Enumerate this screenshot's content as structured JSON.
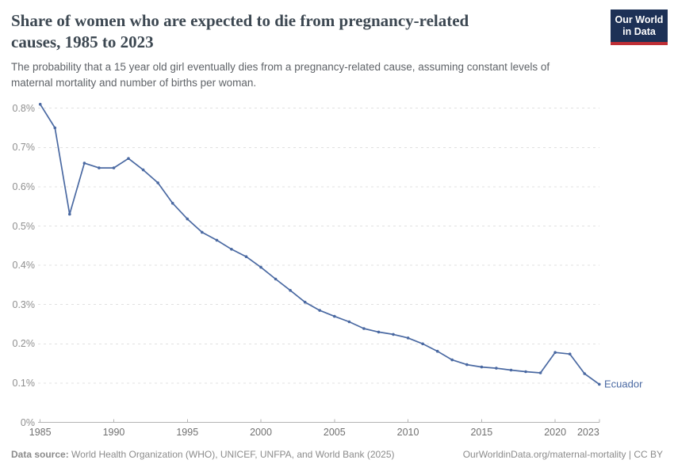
{
  "header": {
    "title_lines": [
      "Share of women who are expected to die from pregnancy-related",
      "causes, 1985 to 2023"
    ],
    "subtitle_lines": [
      "The probability that a 15 year old girl eventually dies from a pregnancy-related cause, assuming constant levels of",
      "maternal mortality and number of births per woman."
    ],
    "logo": {
      "line1": "Our World",
      "line2": "in Data"
    }
  },
  "footer": {
    "source_label": "Data source:",
    "source_text": "World Health Organization (WHO), UNICEF, UNFPA, and World Bank (2025)",
    "link_text": "OurWorldinData.org/maternal-mortality | CC BY"
  },
  "chart_data": {
    "type": "line",
    "title": "Share of women who are expected to die from pregnancy-related causes, 1985 to 2023",
    "xlabel": "",
    "ylabel": "",
    "unit": "%",
    "grid": "horizontal-dashed",
    "legend_position": "end-of-line-label",
    "ylim": [
      0,
      0.8
    ],
    "yticks": [
      {
        "value": 0.0,
        "label": "0%"
      },
      {
        "value": 0.1,
        "label": "0.1%"
      },
      {
        "value": 0.2,
        "label": "0.2%"
      },
      {
        "value": 0.3,
        "label": "0.3%"
      },
      {
        "value": 0.4,
        "label": "0.4%"
      },
      {
        "value": 0.5,
        "label": "0.5%"
      },
      {
        "value": 0.6,
        "label": "0.6%"
      },
      {
        "value": 0.7,
        "label": "0.7%"
      },
      {
        "value": 0.8,
        "label": "0.8%"
      }
    ],
    "xticks": [
      1985,
      1990,
      1995,
      2000,
      2005,
      2010,
      2015,
      2020,
      2023
    ],
    "x": [
      1985,
      1986,
      1987,
      1988,
      1989,
      1990,
      1991,
      1992,
      1993,
      1994,
      1995,
      1996,
      1997,
      1998,
      1999,
      2000,
      2001,
      2002,
      2003,
      2004,
      2005,
      2006,
      2007,
      2008,
      2009,
      2010,
      2011,
      2012,
      2013,
      2014,
      2015,
      2016,
      2017,
      2018,
      2019,
      2020,
      2021,
      2022,
      2023
    ],
    "series": [
      {
        "name": "Ecuador",
        "color": "#4a69a2",
        "values": [
          0.81,
          0.75,
          0.53,
          0.66,
          0.648,
          0.648,
          0.672,
          0.643,
          0.61,
          0.558,
          0.518,
          0.484,
          0.464,
          0.441,
          0.422,
          0.395,
          0.365,
          0.336,
          0.306,
          0.285,
          0.27,
          0.256,
          0.239,
          0.23,
          0.224,
          0.215,
          0.2,
          0.181,
          0.159,
          0.147,
          0.141,
          0.138,
          0.133,
          0.129,
          0.126,
          0.178,
          0.174,
          0.124,
          0.097
        ]
      }
    ],
    "colors": {
      "gridline": "#e0e0e0",
      "axis": "#b3b3b3",
      "y_tick_text": "#8f8f8f",
      "x_tick_text": "#707070"
    }
  }
}
